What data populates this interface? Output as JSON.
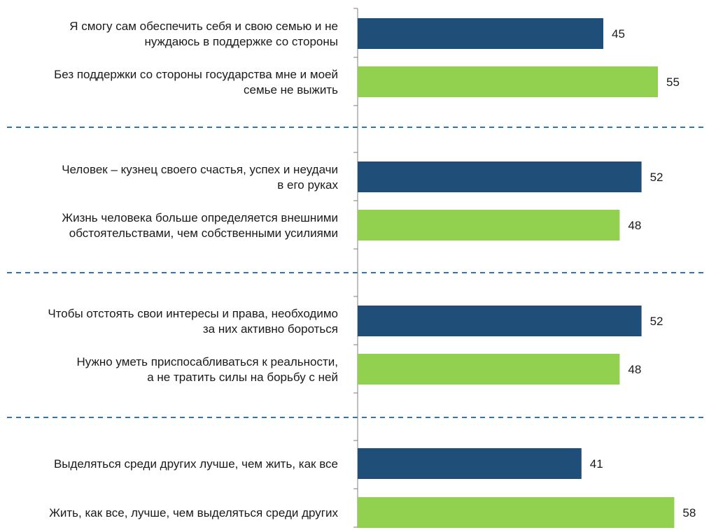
{
  "chart_data": {
    "type": "bar",
    "orientation": "horizontal",
    "xlim": [
      0,
      70
    ],
    "grid": false,
    "colors": {
      "first_in_pair": "#1f4e79",
      "second_in_pair": "#92d050",
      "separator": "#2e75b6"
    },
    "categories": [
      [
        "Я смогу сам обеспечить себя и свою семью и не",
        "нуждаюсь в поддержке со стороны"
      ],
      [
        "Без поддержки со стороны государства мне и моей",
        "семье не выжить"
      ],
      [
        "Человек – кузнец своего счастья, успех и неудачи",
        "в его руках"
      ],
      [
        "Жизнь человека больше определяется внешними",
        "обстоятельствами, чем собственными усилиями"
      ],
      [
        "Чтобы отстоять свои интересы и права, необходимо",
        "за них активно бороться"
      ],
      [
        "Нужно уметь приспосабливаться к реальности,",
        "а не тратить силы на борьбу с ней"
      ],
      [
        "Выделяться среди других лучше, чем жить, как все"
      ],
      [
        "Жить, как все, лучше, чем выделяться среди других"
      ]
    ],
    "values": [
      45,
      55,
      52,
      48,
      52,
      48,
      41,
      58
    ],
    "groups": [
      [
        0,
        1
      ],
      [
        2,
        3
      ],
      [
        4,
        5
      ],
      [
        6,
        7
      ]
    ],
    "separators_between_groups": true
  }
}
